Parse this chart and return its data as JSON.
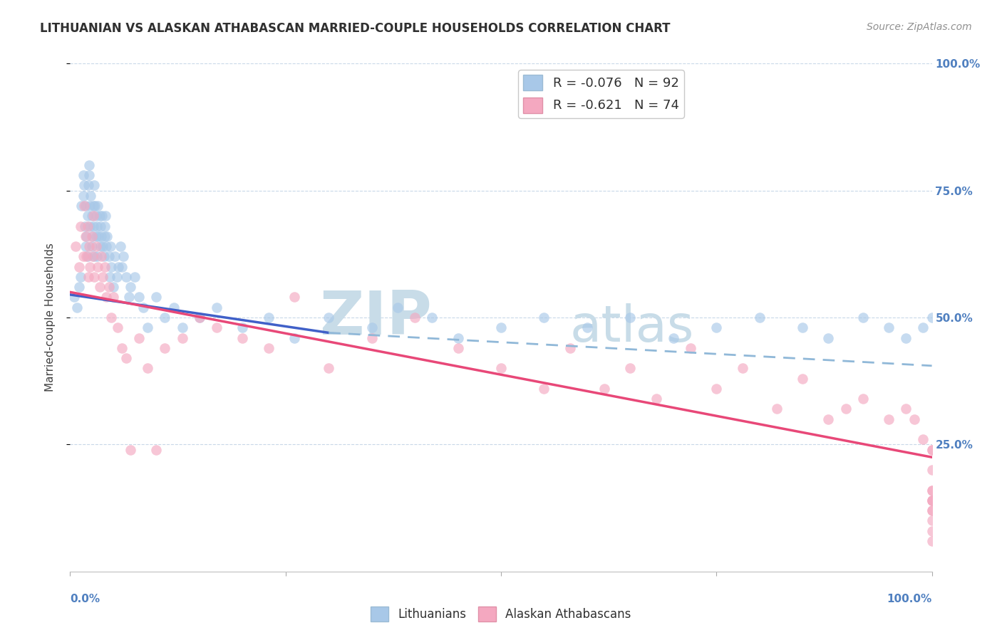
{
  "title": "LITHUANIAN VS ALASKAN ATHABASCAN MARRIED-COUPLE HOUSEHOLDS CORRELATION CHART",
  "source": "Source: ZipAtlas.com",
  "ylabel": "Married-couple Households",
  "legend_label_blue": "R = -0.076   N = 92",
  "legend_label_pink": "R = -0.621   N = 74",
  "legend_bottom_blue": "Lithuanians",
  "legend_bottom_pink": "Alaskan Athabascans",
  "watermark_zip": "ZIP",
  "watermark_atlas": "atlas",
  "blue_color": "#a8c8e8",
  "pink_color": "#f4a8c0",
  "blue_line_color": "#4060c8",
  "pink_line_color": "#e84878",
  "dashed_line_color": "#90b8d8",
  "blue_scatter_x": [
    0.005,
    0.008,
    0.01,
    0.012,
    0.013,
    0.015,
    0.015,
    0.016,
    0.017,
    0.018,
    0.018,
    0.019,
    0.02,
    0.02,
    0.021,
    0.022,
    0.022,
    0.023,
    0.023,
    0.024,
    0.025,
    0.025,
    0.026,
    0.027,
    0.027,
    0.028,
    0.028,
    0.029,
    0.03,
    0.03,
    0.031,
    0.031,
    0.032,
    0.033,
    0.034,
    0.035,
    0.035,
    0.036,
    0.037,
    0.038,
    0.039,
    0.04,
    0.04,
    0.041,
    0.042,
    0.043,
    0.045,
    0.046,
    0.047,
    0.048,
    0.05,
    0.052,
    0.054,
    0.056,
    0.058,
    0.06,
    0.062,
    0.065,
    0.068,
    0.07,
    0.075,
    0.08,
    0.085,
    0.09,
    0.1,
    0.11,
    0.12,
    0.13,
    0.15,
    0.17,
    0.2,
    0.23,
    0.26,
    0.3,
    0.35,
    0.38,
    0.42,
    0.45,
    0.5,
    0.55,
    0.6,
    0.65,
    0.7,
    0.75,
    0.8,
    0.85,
    0.88,
    0.92,
    0.95,
    0.97,
    0.99,
    1.0
  ],
  "blue_scatter_y": [
    0.54,
    0.52,
    0.56,
    0.58,
    0.72,
    0.74,
    0.78,
    0.76,
    0.68,
    0.72,
    0.64,
    0.66,
    0.7,
    0.62,
    0.76,
    0.78,
    0.8,
    0.72,
    0.68,
    0.74,
    0.7,
    0.64,
    0.66,
    0.72,
    0.68,
    0.62,
    0.76,
    0.72,
    0.66,
    0.7,
    0.62,
    0.68,
    0.72,
    0.66,
    0.7,
    0.68,
    0.64,
    0.66,
    0.7,
    0.64,
    0.62,
    0.66,
    0.68,
    0.7,
    0.64,
    0.66,
    0.62,
    0.58,
    0.64,
    0.6,
    0.56,
    0.62,
    0.58,
    0.6,
    0.64,
    0.6,
    0.62,
    0.58,
    0.54,
    0.56,
    0.58,
    0.54,
    0.52,
    0.48,
    0.54,
    0.5,
    0.52,
    0.48,
    0.5,
    0.52,
    0.48,
    0.5,
    0.46,
    0.5,
    0.48,
    0.52,
    0.5,
    0.46,
    0.48,
    0.5,
    0.48,
    0.5,
    0.46,
    0.48,
    0.5,
    0.48,
    0.46,
    0.5,
    0.48,
    0.46,
    0.48,
    0.5
  ],
  "pink_scatter_x": [
    0.006,
    0.01,
    0.012,
    0.015,
    0.016,
    0.018,
    0.019,
    0.02,
    0.021,
    0.022,
    0.023,
    0.025,
    0.026,
    0.027,
    0.028,
    0.03,
    0.032,
    0.034,
    0.036,
    0.038,
    0.04,
    0.042,
    0.045,
    0.048,
    0.05,
    0.055,
    0.06,
    0.065,
    0.07,
    0.08,
    0.09,
    0.1,
    0.11,
    0.13,
    0.15,
    0.17,
    0.2,
    0.23,
    0.26,
    0.3,
    0.35,
    0.4,
    0.45,
    0.5,
    0.55,
    0.58,
    0.62,
    0.65,
    0.68,
    0.72,
    0.75,
    0.78,
    0.82,
    0.85,
    0.88,
    0.9,
    0.92,
    0.95,
    0.97,
    0.98,
    0.99,
    1.0,
    1.0,
    1.0,
    1.0,
    1.0,
    1.0,
    1.0,
    1.0,
    1.0,
    1.0,
    1.0,
    1.0,
    1.0
  ],
  "pink_scatter_y": [
    0.64,
    0.6,
    0.68,
    0.62,
    0.72,
    0.66,
    0.62,
    0.68,
    0.58,
    0.64,
    0.6,
    0.66,
    0.62,
    0.7,
    0.58,
    0.64,
    0.6,
    0.56,
    0.62,
    0.58,
    0.6,
    0.54,
    0.56,
    0.5,
    0.54,
    0.48,
    0.44,
    0.42,
    0.24,
    0.46,
    0.4,
    0.24,
    0.44,
    0.46,
    0.5,
    0.48,
    0.46,
    0.44,
    0.54,
    0.4,
    0.46,
    0.5,
    0.44,
    0.4,
    0.36,
    0.44,
    0.36,
    0.4,
    0.34,
    0.44,
    0.36,
    0.4,
    0.32,
    0.38,
    0.3,
    0.32,
    0.34,
    0.3,
    0.32,
    0.3,
    0.26,
    0.24,
    0.16,
    0.2,
    0.14,
    0.12,
    0.16,
    0.14,
    0.1,
    0.14,
    0.08,
    0.12,
    0.06,
    0.24
  ],
  "blue_line_x0": 0.0,
  "blue_line_x1": 0.3,
  "blue_line_y0": 0.545,
  "blue_line_y1": 0.47,
  "dashed_line_x0": 0.3,
  "dashed_line_x1": 1.0,
  "dashed_line_y0": 0.47,
  "dashed_line_y1": 0.405,
  "pink_line_x0": 0.0,
  "pink_line_x1": 1.0,
  "pink_line_y0": 0.55,
  "pink_line_y1": 0.225,
  "xlim": [
    0.0,
    1.0
  ],
  "ylim": [
    0.0,
    1.0
  ],
  "xtick_labels_left": "0.0%",
  "xtick_labels_right": "100.0%",
  "ytick_labels": [
    "25.0%",
    "50.0%",
    "75.0%",
    "100.0%"
  ],
  "ytick_positions": [
    0.25,
    0.5,
    0.75,
    1.0
  ],
  "grid_color": "#c8d8e8",
  "background_color": "#ffffff",
  "tick_color": "#5080c0",
  "title_color": "#303030",
  "source_color": "#909090",
  "ylabel_color": "#404040",
  "title_fontsize": 12,
  "tick_fontsize": 11,
  "legend_fontsize": 13,
  "source_fontsize": 10,
  "ylabel_fontsize": 11,
  "scatter_size": 110,
  "scatter_alpha": 0.65
}
